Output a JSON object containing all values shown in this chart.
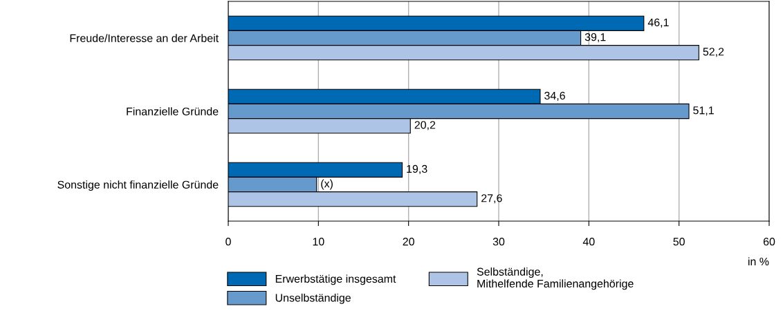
{
  "chart_data": {
    "type": "bar",
    "orientation": "horizontal",
    "categories": [
      "Freude/Interesse an der Arbeit",
      "Finanzielle Gründe",
      "Sonstige nicht finanzielle Gründe"
    ],
    "series": [
      {
        "name": "Erwerbstätige insgesamt",
        "color": "#0069b4",
        "values": [
          46.1,
          34.6,
          19.3
        ],
        "value_labels": [
          "46,1",
          "34,6",
          "19,3"
        ]
      },
      {
        "name": "Unselbständige",
        "color": "#6699cc",
        "values": [
          39.1,
          51.1,
          9.8
        ],
        "value_labels": [
          "39,1",
          "51,1",
          "(x)"
        ]
      },
      {
        "name": "Selbständige,\nMithelfende Familienangehörige",
        "color": "#adc4e6",
        "values": [
          52.2,
          20.2,
          27.6
        ],
        "value_labels": [
          "52,2",
          "20,2",
          "27,6"
        ]
      }
    ],
    "xlim": [
      0,
      60
    ],
    "xticks": [
      0,
      10,
      20,
      30,
      40,
      50,
      60
    ],
    "xlabel": "in %",
    "grid": "x",
    "legend": "bottom"
  }
}
